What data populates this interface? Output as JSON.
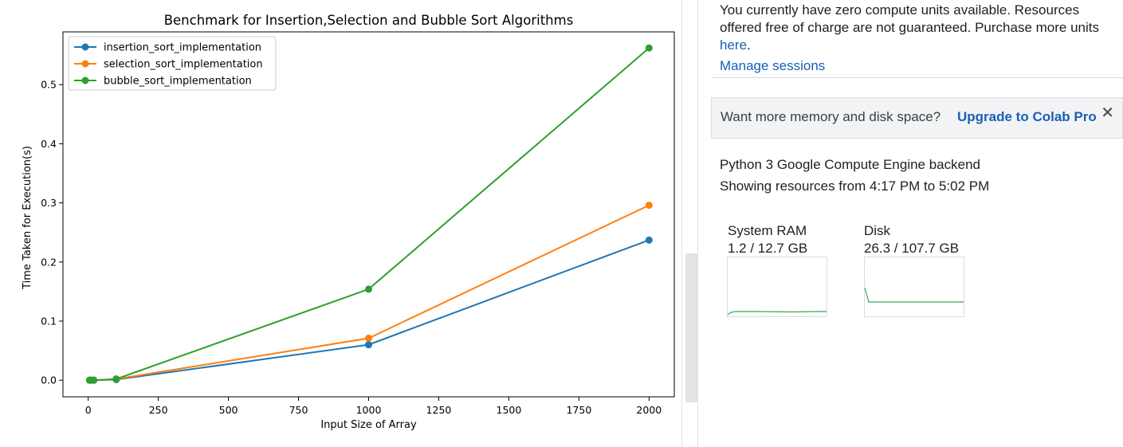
{
  "chart_data": {
    "type": "line",
    "title": "Benchmark for Insertion,Selection and Bubble Sort Algorithms",
    "xlabel": "Input Size of Array",
    "ylabel": "Time Taken for Execution(s)",
    "x": [
      5,
      10,
      20,
      100,
      1000,
      2000
    ],
    "xlim": [
      -90,
      2090
    ],
    "ylim": [
      -0.0281,
      0.5893
    ],
    "xticks": [
      0,
      250,
      500,
      750,
      1000,
      1250,
      1500,
      1750,
      2000
    ],
    "yticks": [
      0.0,
      0.1,
      0.2,
      0.3,
      0.4,
      0.5
    ],
    "xtick_labels": [
      "0",
      "250",
      "500",
      "750",
      "1000",
      "1250",
      "1500",
      "1750",
      "2000"
    ],
    "ytick_labels": [
      "0.0",
      "0.1",
      "0.2",
      "0.3",
      "0.4",
      "0.5"
    ],
    "legend_position": "upper-left",
    "grid": false,
    "series": [
      {
        "name": "insertion_sort_implementation",
        "color": "#1f77b4",
        "values": [
          0.0,
          0.0,
          0.0,
          0.001,
          0.06,
          0.237
        ]
      },
      {
        "name": "selection_sort_implementation",
        "color": "#ff7f0e",
        "values": [
          0.0,
          0.0,
          0.0,
          0.002,
          0.071,
          0.296
        ]
      },
      {
        "name": "bubble_sort_implementation",
        "color": "#2ca02c",
        "values": [
          0.0,
          0.0,
          0.0,
          0.002,
          0.154,
          0.562
        ]
      }
    ]
  },
  "panel": {
    "note_text": "You currently have zero compute units available. Resources offered free of charge are not guaranteed. Purchase more units ",
    "note_link": "here",
    "note_end": ".",
    "manage_sessions": "Manage sessions",
    "upgrade_prompt": "Want more memory and disk space?",
    "upgrade_link": "Upgrade to Colab Pro",
    "close_glyph": "✕",
    "backend": "Python 3 Google Compute Engine backend",
    "resources_range": "Showing resources from 4:17 PM to 5:02 PM",
    "ram_label": "System RAM",
    "ram_value": "1.2 / 12.7 GB",
    "disk_label": "Disk",
    "disk_value": "26.3 / 107.7 GB",
    "spark_color": "#34a853"
  }
}
